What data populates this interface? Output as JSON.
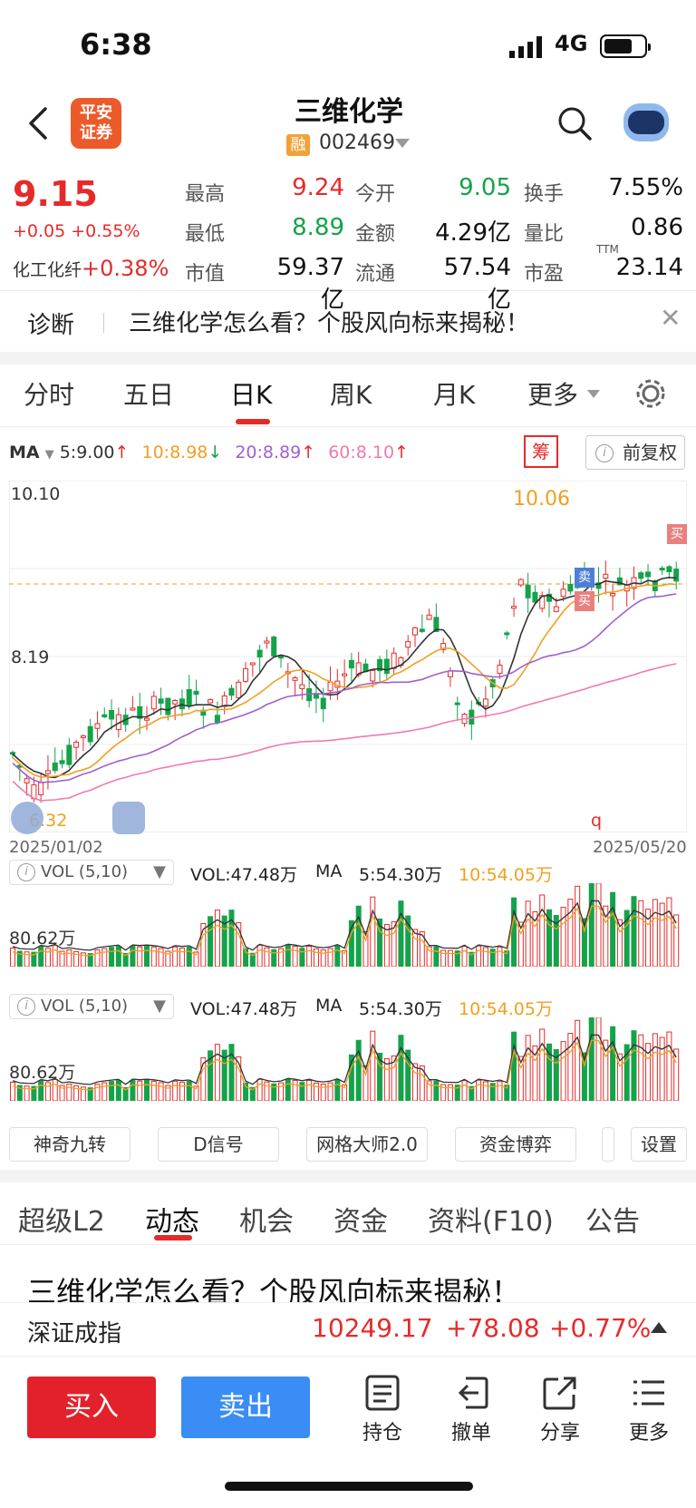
{
  "status": {
    "time": "6:38",
    "network": "4G"
  },
  "header": {
    "broker_logo_line1": "平安",
    "broker_logo_line2": "证券",
    "stock_name": "三维化学",
    "margin_badge": "融",
    "stock_code": "002469"
  },
  "quote": {
    "price": "9.15",
    "change": "+0.05 +0.55%",
    "sector_name": "化工化纤",
    "sector_change": "+0.38%",
    "rows": [
      [
        {
          "label": "最高",
          "value": "9.24",
          "color": "red"
        },
        {
          "label": "今开",
          "value": "9.05",
          "color": "green"
        },
        {
          "label": "换手",
          "value": "7.55%",
          "color": "black"
        }
      ],
      [
        {
          "label": "最低",
          "value": "8.89",
          "color": "green"
        },
        {
          "label": "金额",
          "value": "4.29亿",
          "color": "black"
        },
        {
          "label": "量比",
          "value": "0.86",
          "color": "black"
        }
      ],
      [
        {
          "label": "市值",
          "value": "59.37亿",
          "color": "black"
        },
        {
          "label": "流通",
          "value": "57.54亿",
          "color": "black"
        },
        {
          "label": "市盈",
          "value": "23.14",
          "color": "black"
        }
      ]
    ],
    "pe_sup": "TTM"
  },
  "diagnosis": {
    "label": "诊断",
    "text": "三维化学怎么看？个股风向标来揭秘！"
  },
  "period_tabs": [
    "分时",
    "五日",
    "日K",
    "周K",
    "月K",
    "更多"
  ],
  "active_period": "日K",
  "ma_legend": {
    "title": "MA",
    "ma5": "5:9.00",
    "ma10": "10:8.98",
    "ma20": "20:8.89",
    "ma60": "60:8.10",
    "ma5_color": "#333333",
    "ma10_color": "#f0a020",
    "ma20_color": "#a060d0",
    "ma60_color": "#f07ab0"
  },
  "chip_button": "筹",
  "adjust_button": "前复权",
  "kline": {
    "top_label": "10.10",
    "mid_label": "8.19",
    "low_label": "6.32",
    "high_marker": "10.06",
    "start_date": "2025/01/02",
    "end_date": "2025/05/20",
    "buy_tag": "买",
    "sell_tag": "卖",
    "marker_q": "q"
  },
  "volume_panels": [
    {
      "indicator": "VOL (5,10)",
      "vol": "VOL:47.48万",
      "ma_label": "MA",
      "ma5": "5:54.30万",
      "ma10": "10:54.05万",
      "axis": "80.62万"
    },
    {
      "indicator": "VOL (5,10)",
      "vol": "VOL:47.48万",
      "ma_label": "MA",
      "ma5": "5:54.30万",
      "ma10": "10:54.05万",
      "axis": "80.62万"
    }
  ],
  "tools": [
    "神奇九转",
    "D信号",
    "网格大师2.0",
    "资金博弈",
    "设置"
  ],
  "news_tabs": [
    "超级L2",
    "动态",
    "机会",
    "资金",
    "资料(F10)",
    "公告"
  ],
  "active_news_tab": "动态",
  "news_title": "三维化学怎么看？个股风向标来揭秘！",
  "index": {
    "name": "深证成指",
    "value": "10249.17",
    "change": "+78.08",
    "percent": "+0.77%"
  },
  "actions": {
    "buy": "买入",
    "sell": "卖出",
    "items": [
      "持仓",
      "撤单",
      "分享",
      "更多"
    ]
  },
  "colors": {
    "up": "#e62a2a",
    "down": "#14a34a",
    "accent": "#e62a2a",
    "sell_blue": "#3a8df5"
  }
}
